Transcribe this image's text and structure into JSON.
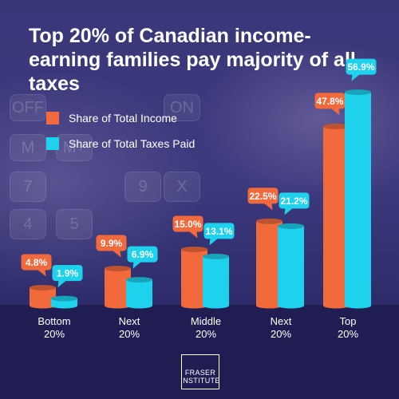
{
  "title": "Top 20% of Canadian income-earning families pay majority of all taxes",
  "colors": {
    "income": "#f26a3c",
    "taxes": "#1ed2ee",
    "background": "#2d2b6b"
  },
  "calculator_keys": [
    "OFF",
    "ON",
    "M",
    "M+",
    "7",
    "9",
    "X",
    "4",
    "5"
  ],
  "legend": [
    {
      "label": "Share of Total Income",
      "color": "#f26a3c"
    },
    {
      "label": "Share of Total Taxes Paid",
      "color": "#1ed2ee"
    }
  ],
  "chart_data": {
    "type": "bar",
    "title": "Top 20% of Canadian income-earning families pay majority of all taxes",
    "categories": [
      "Bottom 20%",
      "Next 20%",
      "Middle 20%",
      "Next 20%",
      "Top 20%"
    ],
    "category_lines": [
      [
        "Bottom",
        "20%"
      ],
      [
        "Next",
        "20%"
      ],
      [
        "Middle",
        "20%"
      ],
      [
        "Next",
        "20%"
      ],
      [
        "Top",
        "20%"
      ]
    ],
    "series": [
      {
        "name": "Share of Total Income",
        "values": [
          4.8,
          9.9,
          15.0,
          22.5,
          47.8
        ],
        "labels": [
          "4.8%",
          "9.9%",
          "15.0%",
          "22.5%",
          "47.8%"
        ],
        "color": "#f26a3c"
      },
      {
        "name": "Share of Total Taxes Paid",
        "values": [
          1.9,
          6.9,
          13.1,
          21.2,
          56.9
        ],
        "labels": [
          "1.9%",
          "6.9%",
          "13.1%",
          "21.2%",
          "56.9%"
        ],
        "color": "#1ed2ee"
      }
    ],
    "ylim": [
      0,
      60
    ],
    "grid": false,
    "legend_position": "top-left"
  },
  "logo": {
    "line1": "FRASER",
    "line2": "INSTITUTE"
  }
}
